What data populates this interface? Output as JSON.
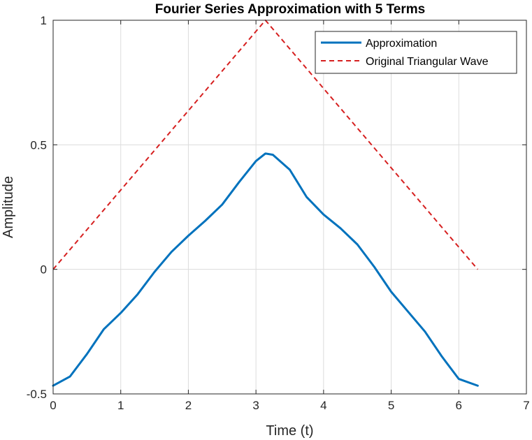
{
  "chart_data": {
    "type": "line",
    "title": "Fourier Series Approximation with 5 Terms",
    "xlabel": "Time (t)",
    "ylabel": "Amplitude",
    "xlim": [
      0,
      7
    ],
    "ylim": [
      -0.5,
      1
    ],
    "xticks": [
      0,
      1,
      2,
      3,
      4,
      5,
      6,
      7
    ],
    "yticks": [
      -0.5,
      0,
      0.5,
      1
    ],
    "xtick_labels": [
      "0",
      "1",
      "2",
      "3",
      "4",
      "5",
      "6",
      "7"
    ],
    "ytick_labels": [
      "-0.5",
      "0",
      "0.5",
      "1"
    ],
    "grid": true,
    "legend_position": "top-right",
    "series": [
      {
        "name": "Approximation",
        "style": "solid",
        "color": "#0072BD",
        "x": [
          0,
          0.25,
          0.5,
          0.75,
          1,
          1.25,
          1.5,
          1.75,
          2,
          2.25,
          2.5,
          2.75,
          3,
          3.14,
          3.25,
          3.5,
          3.75,
          4,
          4.25,
          4.5,
          4.75,
          5,
          5.25,
          5.5,
          5.75,
          6,
          6.28
        ],
        "y": [
          -0.467,
          -0.43,
          -0.34,
          -0.24,
          -0.175,
          -0.1,
          -0.01,
          0.07,
          0.135,
          0.195,
          0.26,
          0.35,
          0.435,
          0.465,
          0.46,
          0.4,
          0.29,
          0.22,
          0.165,
          0.1,
          0.01,
          -0.09,
          -0.17,
          -0.25,
          -0.35,
          -0.44,
          -0.467
        ]
      },
      {
        "name": "Original Triangular Wave",
        "style": "dashed",
        "color": "#D62020",
        "x": [
          0,
          3.14,
          6.28
        ],
        "y": [
          0,
          1,
          0
        ]
      }
    ]
  }
}
